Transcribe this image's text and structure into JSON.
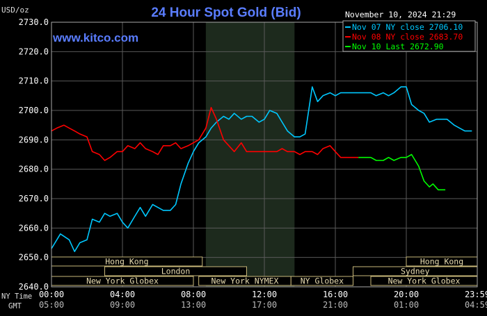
{
  "chart_data": {
    "type": "line",
    "title": "24 Hour Spot Gold (Bid)",
    "watermark": "www.kitco.com",
    "timestamp": "November 10, 2024 21:29",
    "ylabel": "USD/oz",
    "ylim": [
      2640,
      2730
    ],
    "yticks": [
      "2730.0",
      "2720.0",
      "2710.0",
      "2700.0",
      "2690.0",
      "2680.0",
      "2670.0",
      "2660.0",
      "2650.0",
      "2640.0"
    ],
    "grid": true,
    "legend_position": "top-right",
    "xticks_ny": [
      "00:00",
      "04:00",
      "08:00",
      "12:00",
      "16:00",
      "20:00",
      "23:59"
    ],
    "xticks_gmt": [
      "05:00",
      "09:00",
      "13:00",
      "17:00",
      "21:00",
      "01:00",
      "04:59"
    ],
    "row_label_ny": "NY Time",
    "row_label_gmt": "GMT",
    "highlight_hours": [
      8.7,
      13.7
    ],
    "sessions": [
      [
        {
          "label": "Hong Kong",
          "start": 0,
          "end": 8.5
        },
        {
          "label": "Hong Kong",
          "start": 20,
          "end": 24
        }
      ],
      [
        {
          "label": "London",
          "start": 3,
          "end": 11
        },
        {
          "label": "Sydney",
          "start": 17,
          "end": 24
        }
      ],
      [
        {
          "label": "New York Globex",
          "start": 0,
          "end": 8
        },
        {
          "label": "New York NYMEX",
          "start": 8.3,
          "end": 13.5
        },
        {
          "label": "NY Globex",
          "start": 13.5,
          "end": 17
        },
        {
          "label": "New York Globex",
          "start": 18,
          "end": 24
        }
      ]
    ],
    "series": [
      {
        "name": "Nov 07 NY close 2706.10",
        "color": "#00c8ff",
        "x": [
          0,
          0.5,
          1,
          1.3,
          1.6,
          2,
          2.3,
          2.7,
          3,
          3.3,
          3.7,
          4,
          4.3,
          4.7,
          5,
          5.3,
          5.7,
          6,
          6.3,
          6.7,
          7,
          7.3,
          7.7,
          8,
          8.3,
          8.7,
          9,
          9.3,
          9.7,
          10,
          10.3,
          10.7,
          11,
          11.3,
          11.7,
          12,
          12.3,
          12.7,
          13,
          13.3,
          13.7,
          14,
          14.3,
          14.7,
          15,
          15.3,
          15.7,
          16,
          16.3,
          16.7,
          17,
          17.3,
          17.7,
          18,
          18.3,
          18.7,
          19,
          19.3,
          19.7,
          20,
          20.3,
          20.7,
          21,
          21.3,
          21.7,
          22,
          22.3,
          22.7,
          23,
          23.3,
          23.7
        ],
        "y": [
          2653,
          2658,
          2656,
          2652,
          2655,
          2656,
          2663,
          2662,
          2665,
          2664,
          2665,
          2662,
          2660,
          2664,
          2667,
          2664,
          2668,
          2667,
          2666,
          2666,
          2668,
          2675,
          2682,
          2686,
          2689,
          2691,
          2694,
          2696,
          2698,
          2697,
          2699,
          2697,
          2698,
          2698,
          2696,
          2697,
          2700,
          2699,
          2696,
          2693,
          2691,
          2691,
          2692,
          2708,
          2703,
          2705,
          2706,
          2705,
          2706,
          2706,
          2706,
          2706,
          2706,
          2706,
          2705,
          2706,
          2705,
          2706,
          2708,
          2708,
          2702,
          2700,
          2699,
          2696,
          2697,
          2697,
          2697,
          2695,
          2694,
          2693,
          2693
        ]
      },
      {
        "name": "Nov 08 NY close 2683.70",
        "color": "#ff0000",
        "x": [
          0,
          0.3,
          0.7,
          1,
          1.3,
          1.6,
          2,
          2.3,
          2.7,
          3,
          3.3,
          3.7,
          4,
          4.3,
          4.7,
          5,
          5.3,
          5.7,
          6,
          6.3,
          6.7,
          7,
          7.3,
          7.7,
          8,
          8.3,
          8.7,
          9,
          9.3,
          9.7,
          10,
          10.3,
          10.7,
          11,
          11.3,
          11.7,
          12,
          12.3,
          12.7,
          13,
          13.3,
          13.7,
          14,
          14.3,
          14.7,
          15,
          15.3,
          15.7,
          16,
          16.3,
          16.7,
          17,
          17.3
        ],
        "y": [
          2693,
          2694,
          2695,
          2694,
          2693,
          2692,
          2691,
          2686,
          2685,
          2683,
          2684,
          2686,
          2686,
          2688,
          2687,
          2689,
          2687,
          2686,
          2685,
          2688,
          2688,
          2689,
          2687,
          2688,
          2689,
          2690,
          2694,
          2701,
          2697,
          2690,
          2688,
          2686,
          2689,
          2686,
          2686,
          2686,
          2686,
          2686,
          2686,
          2687,
          2686,
          2686,
          2685,
          2686,
          2686,
          2685,
          2687,
          2688,
          2686,
          2684,
          2684,
          2684,
          2684
        ]
      },
      {
        "name": "Nov 10 Last 2672.90",
        "color": "#00ff00",
        "x": [
          17.3,
          17.6,
          18,
          18.3,
          18.7,
          19,
          19.3,
          19.7,
          20,
          20.3,
          20.5,
          20.7,
          21,
          21.3,
          21.5,
          21.8,
          22,
          22.2
        ],
        "y": [
          2684,
          2684,
          2684,
          2683,
          2683,
          2684,
          2683,
          2684,
          2684,
          2685,
          2683,
          2681,
          2676,
          2674,
          2675,
          2673,
          2673,
          2673
        ]
      }
    ]
  }
}
